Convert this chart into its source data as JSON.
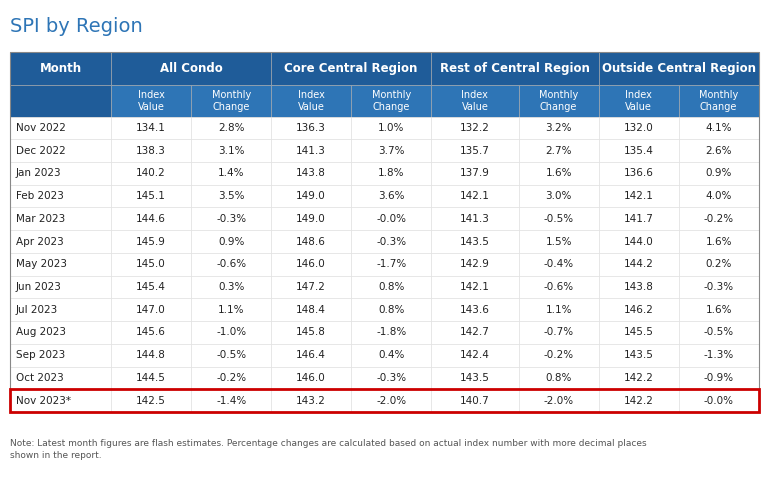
{
  "title": "SPI by Region",
  "note": "Note: Latest month figures are flash estimates. Percentage changes are calculated based on actual index number with more decimal places\nshown in the report.",
  "header_bg": "#1F5C99",
  "header_text": "#FFFFFF",
  "subheader_bg": "#2E75B6",
  "subheader_text": "#FFFFFF",
  "last_row_border": "#CC0000",
  "months": [
    "Nov 2022",
    "Dec 2022",
    "Jan 2023",
    "Feb 2023",
    "Mar 2023",
    "Apr 2023",
    "May 2023",
    "Jun 2023",
    "Jul 2023",
    "Aug 2023",
    "Sep 2023",
    "Oct 2023",
    "Nov 2023*"
  ],
  "data": [
    [
      "134.1",
      "2.8%",
      "136.3",
      "1.0%",
      "132.2",
      "3.2%",
      "132.0",
      "4.1%"
    ],
    [
      "138.3",
      "3.1%",
      "141.3",
      "3.7%",
      "135.7",
      "2.7%",
      "135.4",
      "2.6%"
    ],
    [
      "140.2",
      "1.4%",
      "143.8",
      "1.8%",
      "137.9",
      "1.6%",
      "136.6",
      "0.9%"
    ],
    [
      "145.1",
      "3.5%",
      "149.0",
      "3.6%",
      "142.1",
      "3.0%",
      "142.1",
      "4.0%"
    ],
    [
      "144.6",
      "-0.3%",
      "149.0",
      "-0.0%",
      "141.3",
      "-0.5%",
      "141.7",
      "-0.2%"
    ],
    [
      "145.9",
      "0.9%",
      "148.6",
      "-0.3%",
      "143.5",
      "1.5%",
      "144.0",
      "1.6%"
    ],
    [
      "145.0",
      "-0.6%",
      "146.0",
      "-1.7%",
      "142.9",
      "-0.4%",
      "144.2",
      "0.2%"
    ],
    [
      "145.4",
      "0.3%",
      "147.2",
      "0.8%",
      "142.1",
      "-0.6%",
      "143.8",
      "-0.3%"
    ],
    [
      "147.0",
      "1.1%",
      "148.4",
      "0.8%",
      "143.6",
      "1.1%",
      "146.2",
      "1.6%"
    ],
    [
      "145.6",
      "-1.0%",
      "145.8",
      "-1.8%",
      "142.7",
      "-0.7%",
      "145.5",
      "-0.5%"
    ],
    [
      "144.8",
      "-0.5%",
      "146.4",
      "0.4%",
      "142.4",
      "-0.2%",
      "143.5",
      "-1.3%"
    ],
    [
      "144.5",
      "-0.2%",
      "146.0",
      "-0.3%",
      "143.5",
      "0.8%",
      "142.2",
      "-0.9%"
    ],
    [
      "142.5",
      "-1.4%",
      "143.2",
      "-2.0%",
      "140.7",
      "-2.0%",
      "142.2",
      "-0.0%"
    ]
  ],
  "title_color": "#2E75B6",
  "title_fontsize": 14,
  "cell_fontsize": 7.5,
  "header_fontsize": 8.5,
  "subheader_fontsize": 7,
  "note_fontsize": 6.5,
  "grid_color": "#AAAAAA",
  "cell_border_color": "#DDDDDD"
}
